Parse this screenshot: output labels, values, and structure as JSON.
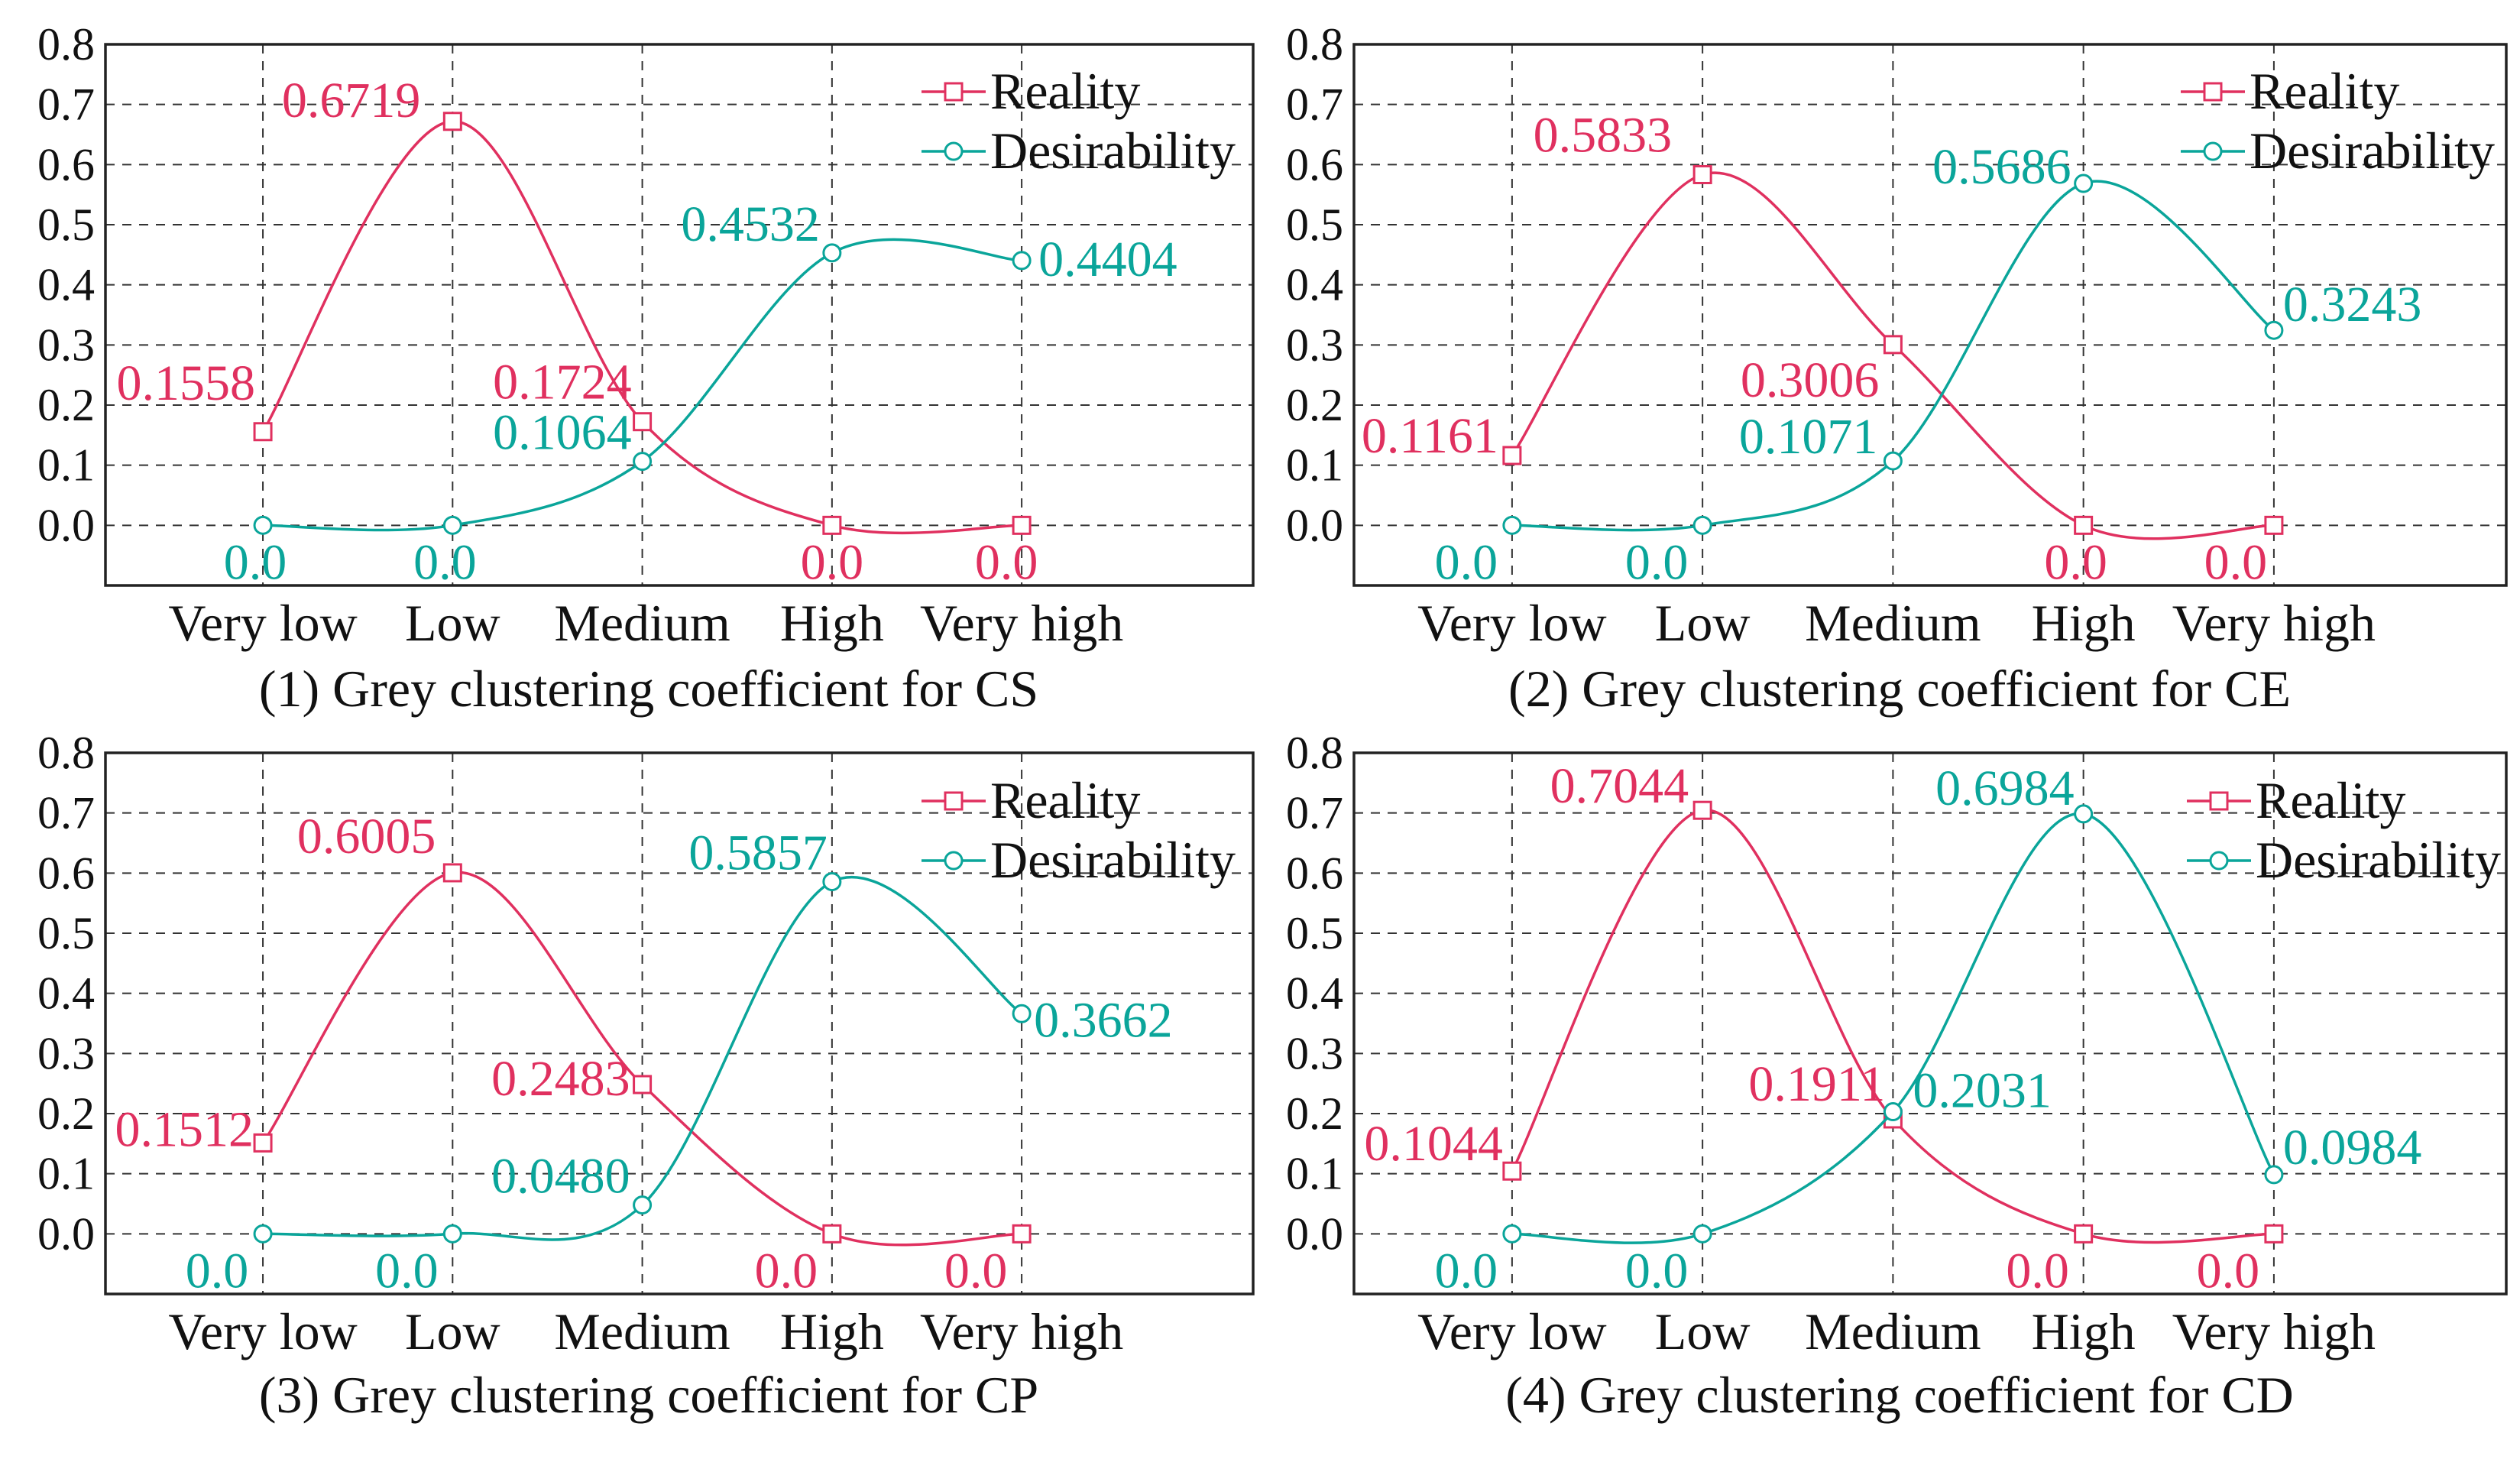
{
  "colors": {
    "reality": "#e0305f",
    "desirability": "#0aa59a",
    "axis": "#222222"
  },
  "legend": {
    "placement": "top-right",
    "entries": [
      "Reality",
      "Desirability"
    ]
  },
  "chart_data": [
    {
      "type": "line",
      "caption": "(1) Grey clustering coefficient for CS",
      "categories": [
        "Very low",
        "Low",
        "Medium",
        "High",
        "Very high"
      ],
      "y_ticks": [
        "0.0",
        "0.1",
        "0.2",
        "0.3",
        "0.4",
        "0.5",
        "0.6",
        "0.7",
        "0.8"
      ],
      "ylim": [
        -0.1,
        0.8
      ],
      "grid": true,
      "series": [
        {
          "name": "Reality",
          "values": [
            0.1558,
            0.6719,
            0.1724,
            0.0,
            0.0
          ],
          "labels": [
            "0.1558",
            "0.6719",
            "0.1724",
            "0.0",
            "0.0"
          ]
        },
        {
          "name": "Desirability",
          "values": [
            0.0,
            0.0,
            0.1064,
            0.4532,
            0.4404
          ],
          "labels": [
            "0.0",
            "0.0",
            "0.1064",
            "0.4532",
            "0.4404"
          ]
        }
      ]
    },
    {
      "type": "line",
      "caption": "(2) Grey clustering coefficient for CE",
      "categories": [
        "Very low",
        "Low",
        "Medium",
        "High",
        "Very high"
      ],
      "y_ticks": [
        "0.0",
        "0.1",
        "0.2",
        "0.3",
        "0.4",
        "0.5",
        "0.6",
        "0.7",
        "0.8"
      ],
      "ylim": [
        -0.1,
        0.8
      ],
      "grid": true,
      "series": [
        {
          "name": "Reality",
          "values": [
            0.1161,
            0.5833,
            0.3006,
            0.0,
            0.0
          ],
          "labels": [
            "0.1161",
            "0.5833",
            "0.3006",
            "0.0",
            "0.0"
          ]
        },
        {
          "name": "Desirability",
          "values": [
            0.0,
            0.0,
            0.1071,
            0.5686,
            0.3243
          ],
          "labels": [
            "0.0",
            "0.0",
            "0.1071",
            "0.5686",
            "0.3243"
          ]
        }
      ]
    },
    {
      "type": "line",
      "caption": "(3) Grey clustering coefficient for CP",
      "categories": [
        "Very low",
        "Low",
        "Medium",
        "High",
        "Very high"
      ],
      "y_ticks": [
        "0.0",
        "0.1",
        "0.2",
        "0.3",
        "0.4",
        "0.5",
        "0.6",
        "0.7",
        "0.8"
      ],
      "ylim": [
        -0.1,
        0.8
      ],
      "grid": true,
      "series": [
        {
          "name": "Reality",
          "values": [
            0.1512,
            0.6005,
            0.2483,
            0.0,
            0.0
          ],
          "labels": [
            "0.1512",
            "0.6005",
            "0.2483",
            "0.0",
            "0.0"
          ]
        },
        {
          "name": "Desirability",
          "values": [
            0.0,
            0.0,
            0.048,
            0.5857,
            0.3662
          ],
          "labels": [
            "0.0",
            "0.0",
            "0.0480",
            "0.5857",
            "0.3662"
          ]
        }
      ]
    },
    {
      "type": "line",
      "caption": "(4) Grey clustering coefficient for CD",
      "categories": [
        "Very low",
        "Low",
        "Medium",
        "High",
        "Very high"
      ],
      "y_ticks": [
        "0.0",
        "0.1",
        "0.2",
        "0.3",
        "0.4",
        "0.5",
        "0.6",
        "0.7",
        "0.8"
      ],
      "ylim": [
        -0.1,
        0.8
      ],
      "grid": true,
      "series": [
        {
          "name": "Reality",
          "values": [
            0.1044,
            0.7044,
            0.1911,
            0.0,
            0.0
          ],
          "labels": [
            "0.1044",
            "0.7044",
            "0.1911",
            "0.0",
            "0.0"
          ]
        },
        {
          "name": "Desirability",
          "values": [
            0.0,
            0.0,
            0.2031,
            0.6984,
            0.0984
          ],
          "labels": [
            "0.0",
            "0.0",
            "0.2031",
            "0.6984",
            "0.0984"
          ]
        }
      ]
    }
  ]
}
